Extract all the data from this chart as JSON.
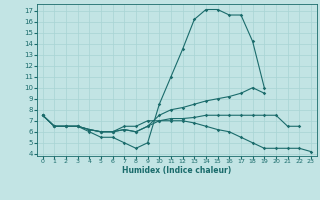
{
  "xlabel": "Humidex (Indice chaleur)",
  "background_color": "#c2e4e4",
  "line_color": "#1a6b6b",
  "xlim": [
    -0.5,
    23.5
  ],
  "ylim": [
    3.8,
    17.6
  ],
  "xticks": [
    0,
    1,
    2,
    3,
    4,
    5,
    6,
    7,
    8,
    9,
    10,
    11,
    12,
    13,
    14,
    15,
    16,
    17,
    18,
    19,
    20,
    21,
    22,
    23
  ],
  "yticks": [
    4,
    5,
    6,
    7,
    8,
    9,
    10,
    11,
    12,
    13,
    14,
    15,
    16,
    17
  ],
  "series": [
    [
      7.5,
      6.5,
      6.5,
      6.5,
      6.0,
      5.5,
      5.5,
      5.0,
      4.5,
      5.0,
      8.5,
      11.0,
      13.5,
      16.2,
      17.1,
      17.1,
      16.6,
      16.6,
      14.2,
      10.0,
      null,
      null,
      null,
      null
    ],
    [
      7.5,
      6.5,
      6.5,
      6.5,
      6.2,
      6.0,
      6.0,
      6.2,
      6.0,
      6.5,
      7.5,
      8.0,
      8.2,
      8.5,
      8.8,
      9.0,
      9.2,
      9.5,
      10.0,
      9.5,
      null,
      null,
      null,
      null
    ],
    [
      7.5,
      6.5,
      6.5,
      6.5,
      6.2,
      6.0,
      6.0,
      6.2,
      6.0,
      6.5,
      7.0,
      7.2,
      7.2,
      7.3,
      7.5,
      7.5,
      7.5,
      7.5,
      7.5,
      7.5,
      7.5,
      6.5,
      6.5,
      null
    ],
    [
      7.5,
      6.5,
      6.5,
      6.5,
      6.2,
      6.0,
      6.0,
      6.5,
      6.5,
      7.0,
      7.0,
      7.0,
      7.0,
      6.8,
      6.5,
      6.2,
      6.0,
      5.5,
      5.0,
      4.5,
      4.5,
      4.5,
      4.5,
      4.2
    ]
  ]
}
